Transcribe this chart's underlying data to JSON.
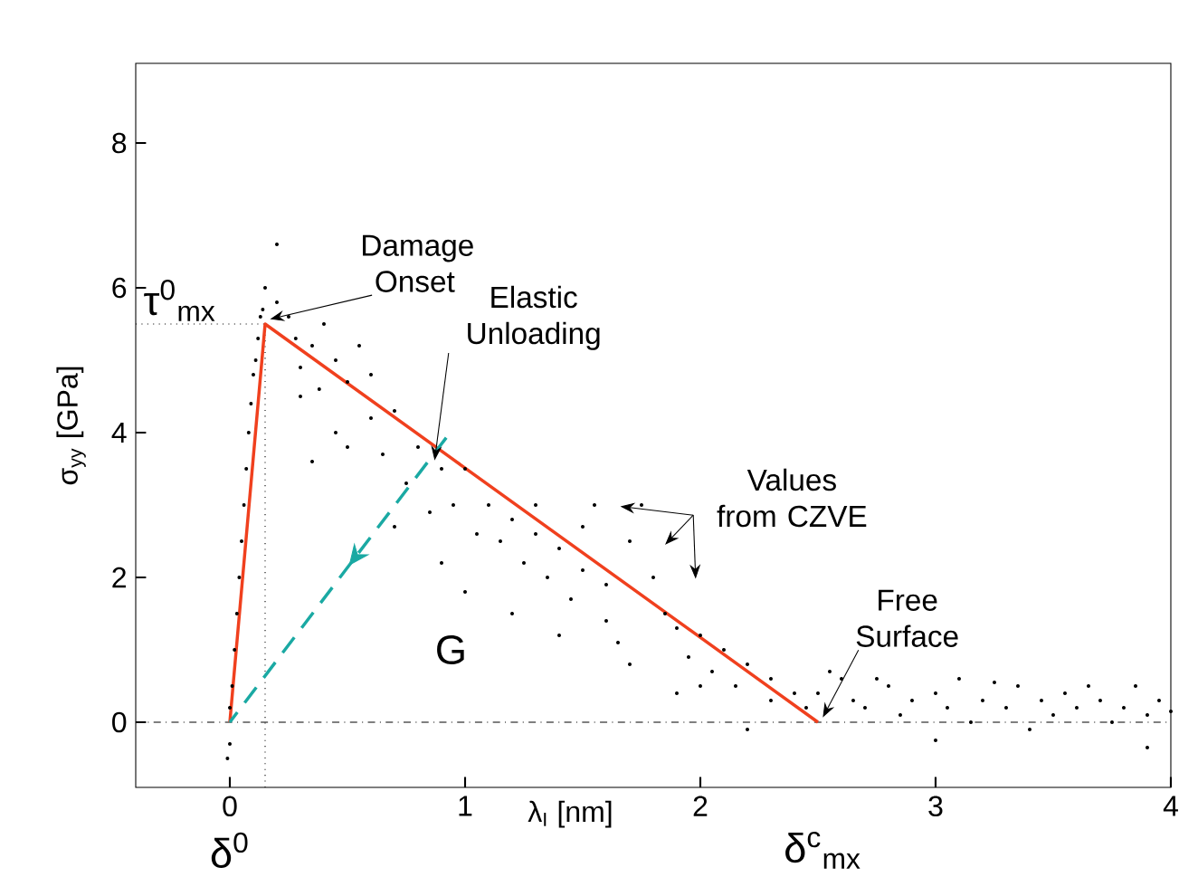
{
  "chart_data": {
    "type": "scatter",
    "xlabel": "λ$_{I}$ [nm]",
    "ylabel": "σ$_{yy}$ [GPa]",
    "xlim": [
      -0.4,
      4.0
    ],
    "ylim": [
      -0.9,
      9.1
    ],
    "xticks": [
      0,
      1,
      2,
      3,
      4
    ],
    "yticks": [
      0,
      2,
      4,
      6,
      8
    ],
    "series": [
      {
        "color": "#000000",
        "marker": "circle",
        "x": [
          0.0,
          0.0,
          0.02,
          0.04,
          0.06,
          0.08,
          0.1,
          0.12,
          0.13,
          0.03,
          0.05,
          0.07,
          0.09,
          0.11,
          0.14,
          0.01,
          -0.01,
          0.2,
          0.15,
          0.2,
          0.25,
          0.28,
          0.35,
          0.4,
          0.45,
          0.3,
          0.55,
          0.6,
          0.5,
          0.38,
          0.6,
          0.7,
          0.3,
          0.45,
          0.5,
          0.35,
          0.65,
          0.8,
          0.75,
          0.9,
          1.0,
          0.95,
          1.1,
          1.05,
          0.85,
          0.7,
          1.15,
          1.2,
          1.3,
          1.25,
          1.4,
          1.35,
          1.5,
          1.45,
          1.6,
          1.6,
          1.7,
          1.75,
          1.55,
          1.8,
          1.85,
          1.9,
          1.95,
          2.0,
          2.05,
          2.1,
          2.2,
          2.15,
          2.3,
          2.3,
          2.4,
          2.45,
          1.0,
          1.2,
          0.9,
          1.4,
          1.7,
          1.9,
          2.0,
          1.65,
          2.2,
          1.5,
          1.3,
          2.5,
          2.6,
          2.65,
          2.7,
          2.8,
          2.85,
          2.9,
          3.0,
          3.05,
          3.1,
          3.15,
          3.2,
          3.3,
          3.35,
          3.4,
          3.45,
          3.5,
          3.55,
          3.6,
          3.7,
          3.75,
          3.8,
          3.85,
          3.9,
          3.95,
          4.0,
          3.0,
          3.9,
          2.55,
          2.75,
          3.25,
          3.65
        ],
        "values": [
          -0.3,
          0.2,
          1.0,
          2.0,
          3.0,
          4.0,
          4.8,
          5.3,
          5.6,
          1.5,
          2.5,
          3.5,
          4.4,
          5.0,
          5.7,
          0.5,
          -0.5,
          6.6,
          6.0,
          5.8,
          5.6,
          5.3,
          5.2,
          5.5,
          5.0,
          4.9,
          5.2,
          4.8,
          4.7,
          4.6,
          4.2,
          4.3,
          4.5,
          4.0,
          3.8,
          3.6,
          3.7,
          3.8,
          3.3,
          3.5,
          3.5,
          3.0,
          3.0,
          2.6,
          2.9,
          2.7,
          2.5,
          2.8,
          2.6,
          2.2,
          2.4,
          2.0,
          2.1,
          1.7,
          1.9,
          1.4,
          2.5,
          3.0,
          3.0,
          2.0,
          1.5,
          1.3,
          0.9,
          1.2,
          0.7,
          1.0,
          0.8,
          0.5,
          0.6,
          0.3,
          0.4,
          0.2,
          1.8,
          1.5,
          2.2,
          1.2,
          0.8,
          0.4,
          0.5,
          1.1,
          -0.1,
          2.7,
          3.0,
          0.4,
          0.6,
          0.3,
          0.2,
          0.5,
          0.1,
          0.3,
          0.4,
          0.2,
          0.6,
          0.0,
          0.3,
          0.2,
          0.5,
          -0.1,
          0.3,
          0.1,
          0.4,
          0.2,
          0.3,
          0.0,
          0.2,
          0.5,
          0.1,
          0.3,
          0.15,
          -0.25,
          -0.35,
          0.7,
          0.6,
          0.55,
          0.5
        ]
      },
      {
        "type": "line",
        "color": "#f0401e",
        "marker": "none",
        "line_style": "solid",
        "x": [
          0,
          0.15,
          2.5
        ],
        "values": [
          0,
          5.5,
          0
        ]
      },
      {
        "type": "line",
        "color": "#1aa9a3",
        "marker": "none",
        "line_style": "dashed",
        "x": [
          0.92,
          0
        ],
        "values": [
          3.93,
          0
        ]
      }
    ],
    "ref_lines": [
      {
        "axis": "y",
        "value": 0,
        "line_style": "dashdot"
      },
      {
        "axis": "y",
        "value": 5.5,
        "line_style": "dotted",
        "label": "τ$^{0}$$_{mx}$"
      },
      {
        "axis": "x",
        "value": 0.15,
        "line_style": "dotted"
      }
    ],
    "annotations": [
      {
        "text": "Damage Onset",
        "x": 0.15,
        "y": 5.5
      },
      {
        "text": "Elastic Unloading",
        "x": 0.85,
        "y": 3.55
      },
      "Values from CZVE",
      {
        "text": "Free Surface",
        "x": 2.5,
        "y": 0
      },
      "δ$^{c}$$_{mx}$",
      "G",
      "δ$^{0}$"
    ]
  }
}
